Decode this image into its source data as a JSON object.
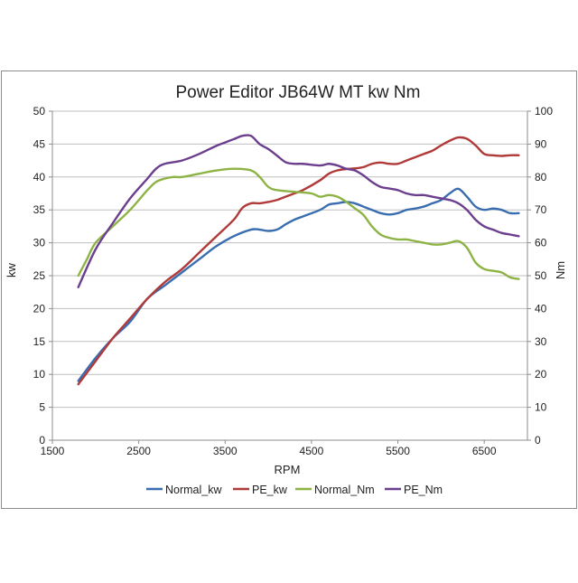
{
  "chart_data": {
    "type": "line",
    "title": "Power Editor  JB64W MT  kw Nm",
    "xlabel": "RPM",
    "ylabel_left": "kw",
    "ylabel_right": "Nm",
    "xlim": [
      1500,
      7000
    ],
    "ylim_left": [
      0,
      50
    ],
    "ylim_right": [
      0,
      100
    ],
    "x_ticks": [
      1500,
      2500,
      3500,
      4500,
      5500,
      6500
    ],
    "x_tick_labels": [
      "1500",
      "2500",
      "3500",
      "4500",
      "5500",
      "6500"
    ],
    "y_left_ticks": [
      0,
      5,
      10,
      15,
      20,
      25,
      30,
      35,
      40,
      45,
      50
    ],
    "y_left_tick_labels": [
      "0",
      "5",
      "10",
      "15",
      "20",
      "25",
      "30",
      "35",
      "40",
      "45",
      "50"
    ],
    "y_right_ticks": [
      0,
      10,
      20,
      30,
      40,
      50,
      60,
      70,
      80,
      90,
      100
    ],
    "y_right_tick_labels": [
      "0",
      "10",
      "20",
      "30",
      "40",
      "50",
      "60",
      "70",
      "80",
      "90",
      "100"
    ],
    "grid": true,
    "legend_position": "bottom",
    "series": [
      {
        "name": "Normal_kw",
        "axis": "left",
        "color": "#3A6DB0",
        "x": [
          1800,
          2000,
          2200,
          2400,
          2600,
          2800,
          3000,
          3200,
          3400,
          3600,
          3800,
          3900,
          4000,
          4100,
          4200,
          4300,
          4400,
          4600,
          4700,
          4800,
          4900,
          5000,
          5100,
          5200,
          5300,
          5400,
          5500,
          5600,
          5700,
          5800,
          5900,
          6000,
          6100,
          6200,
          6300,
          6400,
          6500,
          6600,
          6700,
          6800,
          6900
        ],
        "y": [
          9.0,
          12.5,
          15.5,
          18.0,
          21.5,
          23.5,
          25.5,
          27.5,
          29.5,
          31.0,
          32.0,
          32.0,
          31.8,
          32.0,
          32.8,
          33.5,
          34.0,
          35.0,
          35.8,
          36.0,
          36.2,
          36.0,
          35.5,
          35.0,
          34.5,
          34.3,
          34.5,
          35.0,
          35.2,
          35.5,
          36.0,
          36.5,
          37.5,
          38.2,
          37.0,
          35.5,
          35.0,
          35.2,
          35.0,
          34.5,
          34.5
        ]
      },
      {
        "name": "PE_kw",
        "axis": "left",
        "color": "#B03A3A",
        "x": [
          1800,
          2000,
          2200,
          2400,
          2600,
          2800,
          3000,
          3200,
          3400,
          3600,
          3700,
          3800,
          3900,
          4000,
          4100,
          4200,
          4300,
          4400,
          4600,
          4700,
          4800,
          4900,
          5000,
          5100,
          5200,
          5300,
          5400,
          5500,
          5600,
          5700,
          5800,
          5900,
          6000,
          6100,
          6200,
          6300,
          6400,
          6500,
          6600,
          6700,
          6800,
          6900
        ],
        "y": [
          8.5,
          12.0,
          15.5,
          18.5,
          21.5,
          24.0,
          26.0,
          28.5,
          31.0,
          33.5,
          35.3,
          36.0,
          36.0,
          36.2,
          36.5,
          37.0,
          37.5,
          38.0,
          39.5,
          40.5,
          41.0,
          41.2,
          41.3,
          41.5,
          42.0,
          42.2,
          42.0,
          42.0,
          42.5,
          43.0,
          43.5,
          44.0,
          44.8,
          45.5,
          46.0,
          45.8,
          44.8,
          43.5,
          43.3,
          43.2,
          43.3,
          43.3
        ]
      },
      {
        "name": "Normal_Nm",
        "axis": "right",
        "color": "#8DB345",
        "x": [
          1800,
          1900,
          2000,
          2200,
          2400,
          2600,
          2700,
          2800,
          2900,
          3000,
          3200,
          3400,
          3600,
          3800,
          3900,
          4000,
          4100,
          4300,
          4500,
          4600,
          4700,
          4800,
          4900,
          5000,
          5100,
          5200,
          5300,
          5400,
          5500,
          5600,
          5700,
          5800,
          5900,
          6000,
          6100,
          6200,
          6300,
          6400,
          6500,
          6600,
          6700,
          6800,
          6900
        ],
        "y": [
          50.0,
          55.0,
          60.0,
          65.0,
          70.0,
          76.0,
          78.5,
          79.5,
          80.0,
          80.0,
          81.0,
          82.0,
          82.5,
          82.0,
          80.0,
          77.0,
          76.0,
          75.5,
          75.0,
          74.0,
          74.5,
          74.0,
          72.5,
          70.5,
          68.5,
          65.0,
          62.5,
          61.5,
          61.0,
          61.0,
          60.5,
          60.0,
          59.5,
          59.5,
          60.0,
          60.5,
          58.5,
          54.0,
          52.0,
          51.5,
          51.0,
          49.5,
          49.0
        ]
      },
      {
        "name": "PE_Nm",
        "axis": "right",
        "color": "#6B3E8E",
        "x": [
          1800,
          2000,
          2200,
          2400,
          2600,
          2700,
          2800,
          3000,
          3200,
          3400,
          3500,
          3600,
          3700,
          3800,
          3900,
          4000,
          4100,
          4200,
          4300,
          4400,
          4600,
          4700,
          4800,
          4900,
          5000,
          5100,
          5200,
          5300,
          5400,
          5500,
          5600,
          5700,
          5800,
          5900,
          6000,
          6100,
          6200,
          6300,
          6400,
          6500,
          6600,
          6700,
          6800,
          6900
        ],
        "y": [
          46.5,
          58.0,
          66.0,
          73.5,
          79.5,
          82.5,
          84.0,
          85.0,
          87.0,
          89.5,
          90.5,
          91.5,
          92.5,
          92.5,
          90.0,
          88.5,
          86.5,
          84.5,
          84.0,
          84.0,
          83.5,
          84.0,
          83.5,
          82.5,
          82.0,
          80.5,
          78.5,
          77.0,
          76.5,
          76.0,
          75.0,
          74.5,
          74.5,
          74.0,
          73.5,
          73.0,
          72.0,
          70.0,
          67.0,
          65.0,
          64.0,
          63.0,
          62.5,
          62.0
        ]
      }
    ]
  }
}
